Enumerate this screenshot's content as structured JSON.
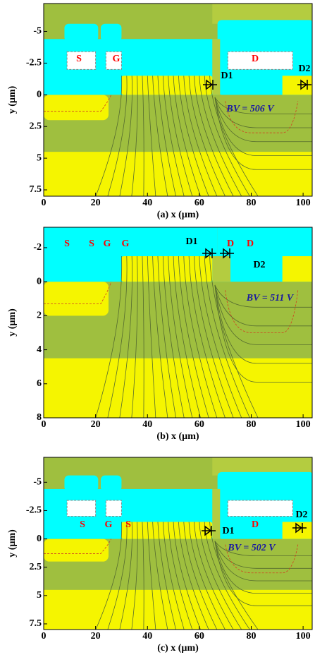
{
  "chart_data": [
    {
      "type": "contour",
      "xlabel": "(a) x (µm)",
      "ylabel": "y (µm)",
      "xlim": [
        0,
        103.5
      ],
      "ylim": [
        -7.2,
        8
      ],
      "y_inverted": true,
      "xticks": [
        0,
        20,
        40,
        60,
        80,
        100
      ],
      "yticks": [
        -5,
        -2.5,
        0,
        2.5,
        5,
        7.5
      ],
      "annotations": [
        "S",
        "G",
        "D",
        "D1",
        "D2"
      ],
      "bv_label": "BV = 506 V"
    },
    {
      "type": "contour",
      "xlabel": "(b) x (µm)",
      "ylabel": "y (µm)",
      "xlim": [
        0,
        103.5
      ],
      "ylim": [
        -3.2,
        8
      ],
      "y_inverted": true,
      "xticks": [
        0,
        20,
        40,
        60,
        80,
        100
      ],
      "yticks": [
        -2,
        0,
        2,
        4,
        6,
        8
      ],
      "annotations": [
        "S",
        "S",
        "G",
        "G",
        "D1",
        "D",
        "D",
        "D2"
      ],
      "bv_label": "BV = 511 V"
    },
    {
      "type": "contour",
      "xlabel": "(c) x (µm)",
      "ylabel": "y (µm)",
      "xlim": [
        0,
        103.5
      ],
      "ylim": [
        -7.2,
        8
      ],
      "y_inverted": true,
      "xticks": [
        0,
        20,
        40,
        60,
        80,
        100
      ],
      "yticks": [
        -5,
        -2.5,
        0,
        2.5,
        5,
        7.5
      ],
      "annotations": [
        "S",
        "G",
        "S",
        "D",
        "D1",
        "D2"
      ],
      "bv_label": "BV = 502 V"
    }
  ]
}
